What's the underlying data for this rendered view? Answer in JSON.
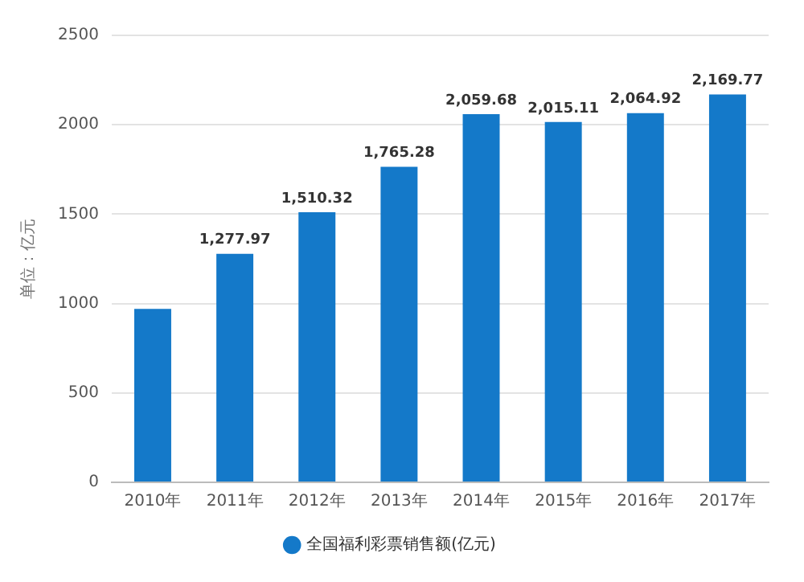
{
  "chart_data": {
    "type": "bar",
    "ylabel": "单位：亿元",
    "categories": [
      "2010年",
      "2011年",
      "2012年",
      "2013年",
      "2014年",
      "2015年",
      "2016年",
      "2017年"
    ],
    "series": [
      {
        "name": "全国福利彩票销售额(亿元)",
        "color": "#1479c9",
        "values": [
          970,
          1277.97,
          1510.32,
          1765.28,
          2059.68,
          2015.11,
          2064.92,
          2169.77
        ],
        "value_labels": [
          null,
          "1,277.97",
          "1,510.32",
          "1,765.28",
          "2,059.68",
          "2,015.11",
          "2,064.92",
          "2,169.77"
        ]
      }
    ],
    "ylim": [
      0,
      2500
    ],
    "yticks": [
      0,
      500,
      1000,
      1500,
      2000,
      2500
    ],
    "grid": "y",
    "legend": "bottom"
  }
}
